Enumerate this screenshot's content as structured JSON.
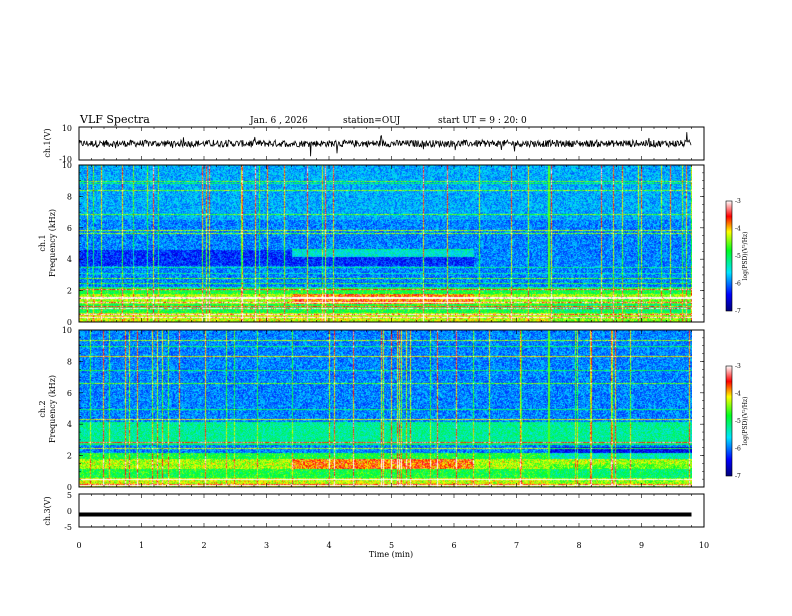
{
  "header": {
    "title": "VLF Spectra",
    "date": "Jan. 6 , 2026",
    "station": "station=OUJ",
    "start": "start UT = 9 : 20: 0"
  },
  "chart_data": [
    {
      "type": "line",
      "name": "ch1-waveform",
      "ylabel": "ch.1(V)",
      "ylim": [
        -10,
        10
      ],
      "y_ticks": [
        "10",
        "-10"
      ],
      "approx_band": [
        -3,
        3
      ]
    },
    {
      "type": "heatmap",
      "name": "ch1-spectrogram",
      "ylabel_top": "ch.1",
      "ylabel": "Frequency (kHz)",
      "ylim": [
        0,
        10
      ],
      "y_ticks": [
        "10",
        "8",
        "6",
        "4",
        "2",
        "0"
      ],
      "colorbar": {
        "label": "log(PSD)(V²/Hz)",
        "range": [
          -7,
          -3
        ],
        "ticks": [
          "-3",
          "-4",
          "-5",
          "-6",
          "-7"
        ]
      }
    },
    {
      "type": "heatmap",
      "name": "ch2-spectrogram",
      "ylabel_top": "ch.2",
      "ylabel": "Frequency (kHz)",
      "ylim": [
        0,
        10
      ],
      "y_ticks": [
        "10",
        "8",
        "6",
        "4",
        "2",
        "0"
      ],
      "colorbar": {
        "label": "log(PSD)(V²/Hz)",
        "range": [
          -7,
          -3
        ],
        "ticks": [
          "-3",
          "-4",
          "-5",
          "-6",
          "-7"
        ]
      }
    },
    {
      "type": "line",
      "name": "ch3-waveform",
      "ylabel": "ch.3(V)",
      "ylim": [
        -5,
        5
      ],
      "y_ticks": [
        "5",
        "0",
        "-5"
      ],
      "approx_level": -1.2
    }
  ],
  "xaxis": {
    "label": "Time (min)",
    "range": [
      0,
      10
    ],
    "ticks": [
      "0",
      "1",
      "2",
      "3",
      "4",
      "5",
      "6",
      "7",
      "8",
      "9",
      "10"
    ],
    "data_end": 9.8
  }
}
